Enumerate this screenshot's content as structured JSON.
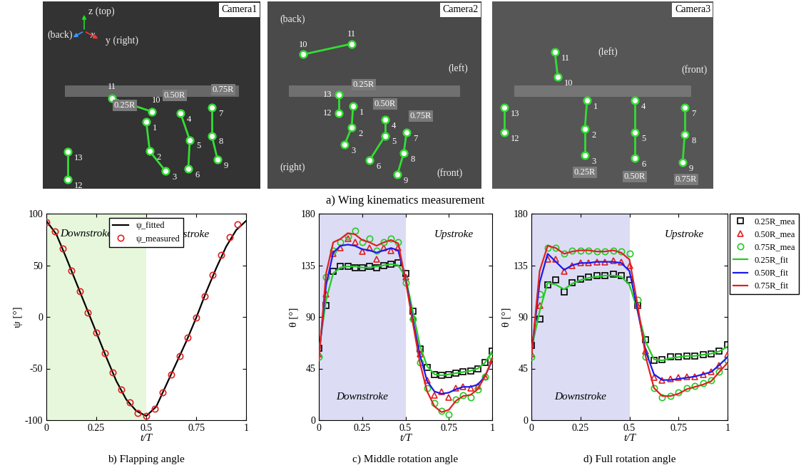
{
  "figure": {
    "caption": "a) Wing kinematics measurement",
    "panels": [
      {
        "camera": "Camera1",
        "directions": [
          "z (top)",
          "(back)",
          "x",
          "y (right)"
        ],
        "points": [
          "1",
          "2",
          "3",
          "4",
          "5",
          "6",
          "7",
          "8",
          "9",
          "10",
          "11",
          "12",
          "13"
        ],
        "sections": [
          "0.25R",
          "0.50R",
          "0.75R"
        ]
      },
      {
        "camera": "Camera2",
        "directions": [
          "(back)",
          "(left)",
          "(right)",
          "(front)"
        ],
        "points": [
          "1",
          "2",
          "3",
          "4",
          "5",
          "6",
          "7",
          "8",
          "9",
          "10",
          "11",
          "12",
          "13"
        ],
        "sections": [
          "0.25R",
          "0.50R",
          "0.75R"
        ]
      },
      {
        "camera": "Camera3",
        "directions": [
          "(left)",
          "(front)"
        ],
        "points": [
          "1",
          "2",
          "3",
          "4",
          "5",
          "6",
          "7",
          "8",
          "9",
          "10",
          "11",
          "12",
          "13"
        ],
        "sections": [
          "0.25R",
          "0.50R",
          "0.75R"
        ]
      }
    ]
  },
  "chart_data": [
    {
      "type": "line",
      "title": "b) Flapping angle",
      "x_label": "t/T",
      "y_label": "ψ [°]",
      "xlim": [
        0,
        1
      ],
      "xticks": [
        0,
        0.25,
        0.5,
        0.75,
        1
      ],
      "ylim": [
        -100,
        100
      ],
      "yticks": [
        -100,
        -50,
        0,
        50,
        100
      ],
      "legend": "upper center",
      "annotations": [
        {
          "text": "Downstroke",
          "x": 0.2,
          "y": 80,
          "span": [
            0,
            0.5
          ],
          "color": "#e6f7dc"
        },
        {
          "text": "Upstroke",
          "x": 0.72,
          "y": 80
        }
      ],
      "series": [
        {
          "name": "ψ_fitted",
          "color": "#000000",
          "marker": "none",
          "line_style": "solid",
          "x": [
            0,
            0.05,
            0.1,
            0.15,
            0.2,
            0.25,
            0.3,
            0.35,
            0.4,
            0.45,
            0.5,
            0.55,
            0.6,
            0.65,
            0.7,
            0.75,
            0.8,
            0.85,
            0.9,
            0.95,
            1
          ],
          "values": [
            93,
            80,
            57,
            33,
            9,
            -15,
            -39,
            -62,
            -80,
            -91,
            -96,
            -87,
            -66,
            -45,
            -24,
            -1,
            24,
            47,
            68,
            84,
            93
          ]
        },
        {
          "name": "ψ_measured",
          "color": "#e02020",
          "marker": "circle",
          "line_style": "none",
          "x": [
            0,
            0.042,
            0.083,
            0.125,
            0.167,
            0.208,
            0.25,
            0.292,
            0.333,
            0.375,
            0.417,
            0.458,
            0.5,
            0.542,
            0.583,
            0.625,
            0.667,
            0.708,
            0.75,
            0.792,
            0.833,
            0.875,
            0.917,
            0.958
          ],
          "values": [
            92,
            83,
            66,
            45,
            25,
            4,
            -15,
            -35,
            -54,
            -70,
            -83,
            -93,
            -96,
            -89,
            -73,
            -56,
            -38,
            -20,
            -1,
            20,
            41,
            60,
            77,
            90
          ]
        }
      ]
    },
    {
      "type": "line",
      "title": "c) Middle rotation angle",
      "x_label": "t/T",
      "y_label": "θ [°]",
      "xlim": [
        0,
        1
      ],
      "xticks": [
        0,
        0.25,
        0.5,
        0.75,
        1
      ],
      "ylim": [
        0,
        180
      ],
      "yticks": [
        0,
        45,
        90,
        135,
        180
      ],
      "annotations": [
        {
          "text": "Downstroke",
          "x": 0.25,
          "y": 20,
          "span": [
            0,
            0.5
          ],
          "color": "#dcdcf5"
        },
        {
          "text": "Upstroke",
          "x": 0.78,
          "y": 162
        }
      ],
      "series": [
        {
          "name": "0.25R_mea",
          "color": "#000000",
          "marker": "square",
          "line_style": "none",
          "x": [
            0,
            0.042,
            0.083,
            0.125,
            0.167,
            0.208,
            0.25,
            0.292,
            0.333,
            0.375,
            0.417,
            0.458,
            0.5,
            0.542,
            0.583,
            0.625,
            0.667,
            0.708,
            0.75,
            0.792,
            0.833,
            0.875,
            0.917,
            0.958,
            1
          ],
          "values": [
            63,
            100,
            130,
            134,
            134,
            133,
            133,
            134,
            133,
            135,
            136,
            137,
            128,
            95,
            62,
            46,
            40,
            39,
            40,
            41,
            42,
            43,
            45,
            50,
            60
          ]
        },
        {
          "name": "0.50R_mea",
          "color": "#e02020",
          "marker": "triangle",
          "line_style": "none",
          "x": [
            0,
            0.042,
            0.083,
            0.125,
            0.167,
            0.208,
            0.25,
            0.292,
            0.333,
            0.375,
            0.417,
            0.458,
            0.5,
            0.542,
            0.583,
            0.625,
            0.667,
            0.708,
            0.75,
            0.792,
            0.833,
            0.875,
            0.917,
            0.958,
            1
          ],
          "values": [
            58,
            110,
            145,
            150,
            158,
            155,
            147,
            150,
            140,
            150,
            148,
            150,
            125,
            90,
            58,
            35,
            22,
            25,
            20,
            28,
            29,
            28,
            30,
            38,
            52
          ]
        },
        {
          "name": "0.75R_mea",
          "color": "#22cc22",
          "marker": "circle",
          "line_style": "none",
          "x": [
            0,
            0.042,
            0.083,
            0.125,
            0.167,
            0.208,
            0.25,
            0.292,
            0.333,
            0.375,
            0.417,
            0.458,
            0.5,
            0.542,
            0.583,
            0.625,
            0.667,
            0.708,
            0.75,
            0.792,
            0.833,
            0.875,
            0.917,
            0.958,
            1
          ],
          "values": [
            55,
            125,
            148,
            155,
            160,
            165,
            155,
            158,
            148,
            155,
            158,
            155,
            120,
            88,
            50,
            28,
            15,
            8,
            5,
            18,
            22,
            20,
            27,
            38,
            55
          ]
        },
        {
          "name": "0.25R_fit",
          "color": "#22cc22",
          "marker": "none",
          "line_style": "solid",
          "x": [
            0,
            0.042,
            0.083,
            0.125,
            0.167,
            0.208,
            0.25,
            0.292,
            0.333,
            0.375,
            0.417,
            0.458,
            0.5,
            0.542,
            0.583,
            0.625,
            0.667,
            0.708,
            0.75,
            0.792,
            0.833,
            0.875,
            0.917,
            0.958,
            1
          ],
          "values": [
            60,
            105,
            128,
            133,
            134,
            134,
            133,
            133,
            134,
            135,
            136,
            135,
            125,
            95,
            65,
            47,
            40,
            39,
            40,
            41,
            42,
            43,
            45,
            50,
            60
          ]
        },
        {
          "name": "0.50R_fit",
          "color": "#1a1aee",
          "marker": "none",
          "line_style": "solid",
          "x": [
            0,
            0.042,
            0.083,
            0.125,
            0.167,
            0.208,
            0.25,
            0.292,
            0.333,
            0.375,
            0.417,
            0.458,
            0.5,
            0.542,
            0.583,
            0.625,
            0.667,
            0.708,
            0.75,
            0.792,
            0.833,
            0.875,
            0.917,
            0.958,
            1
          ],
          "values": [
            55,
            118,
            146,
            152,
            153,
            152,
            149,
            148,
            146,
            148,
            150,
            148,
            124,
            88,
            57,
            34,
            25,
            23,
            24,
            27,
            29,
            29,
            31,
            38,
            52
          ]
        },
        {
          "name": "0.75R_fit",
          "color": "#e02020",
          "marker": "none",
          "line_style": "solid",
          "x": [
            0,
            0.042,
            0.083,
            0.125,
            0.167,
            0.208,
            0.25,
            0.292,
            0.333,
            0.375,
            0.417,
            0.458,
            0.5,
            0.542,
            0.583,
            0.625,
            0.667,
            0.708,
            0.75,
            0.792,
            0.833,
            0.875,
            0.917,
            0.958,
            1
          ],
          "values": [
            52,
            128,
            155,
            158,
            163,
            162,
            157,
            155,
            152,
            155,
            157,
            154,
            122,
            85,
            50,
            25,
            12,
            7,
            9,
            17,
            21,
            22,
            27,
            38,
            53
          ]
        }
      ]
    },
    {
      "type": "line",
      "title": "d) Full rotation angle",
      "x_label": "t/T",
      "y_label": "θ [°]",
      "xlim": [
        0,
        1
      ],
      "xticks": [
        0,
        0.25,
        0.5,
        0.75,
        1
      ],
      "ylim": [
        0,
        180
      ],
      "yticks": [
        0,
        45,
        90,
        135,
        180
      ],
      "legend": "outside right",
      "annotations": [
        {
          "text": "Downstroke",
          "x": 0.25,
          "y": 20,
          "span": [
            0,
            0.5
          ],
          "color": "#dcdcf5"
        },
        {
          "text": "Upstroke",
          "x": 0.78,
          "y": 162
        }
      ],
      "series": [
        {
          "name": "0.25R_mea",
          "color": "#000000",
          "marker": "square",
          "line_style": "none",
          "x": [
            0,
            0.042,
            0.083,
            0.125,
            0.167,
            0.208,
            0.25,
            0.292,
            0.333,
            0.375,
            0.417,
            0.458,
            0.5,
            0.542,
            0.583,
            0.625,
            0.667,
            0.708,
            0.75,
            0.792,
            0.833,
            0.875,
            0.917,
            0.958,
            1
          ],
          "values": [
            65,
            88,
            118,
            122,
            112,
            120,
            123,
            125,
            126,
            126,
            127,
            126,
            122,
            100,
            70,
            52,
            53,
            55,
            55,
            56,
            56,
            57,
            58,
            60,
            66
          ]
        },
        {
          "name": "0.50R_mea",
          "color": "#e02020",
          "marker": "triangle",
          "line_style": "none",
          "x": [
            0,
            0.042,
            0.083,
            0.125,
            0.167,
            0.208,
            0.25,
            0.292,
            0.333,
            0.375,
            0.417,
            0.458,
            0.5,
            0.542,
            0.583,
            0.625,
            0.667,
            0.708,
            0.75,
            0.792,
            0.833,
            0.875,
            0.917,
            0.958,
            1
          ],
          "values": [
            58,
            100,
            140,
            140,
            130,
            135,
            137,
            137,
            138,
            138,
            139,
            138,
            135,
            100,
            60,
            37,
            35,
            36,
            37,
            38,
            38,
            40,
            42,
            48,
            57
          ]
        },
        {
          "name": "0.75R_mea",
          "color": "#22cc22",
          "marker": "circle",
          "line_style": "none",
          "x": [
            0,
            0.042,
            0.083,
            0.125,
            0.167,
            0.208,
            0.25,
            0.292,
            0.333,
            0.375,
            0.417,
            0.458,
            0.5,
            0.542,
            0.583,
            0.625,
            0.667,
            0.708,
            0.75,
            0.792,
            0.833,
            0.875,
            0.917,
            0.958,
            1
          ],
          "values": [
            55,
            110,
            150,
            150,
            145,
            148,
            148,
            148,
            147,
            147,
            148,
            147,
            145,
            105,
            55,
            28,
            20,
            21,
            24,
            28,
            30,
            32,
            35,
            42,
            52
          ]
        },
        {
          "name": "0.25R_fit",
          "color": "#22cc22",
          "marker": "none",
          "line_style": "solid",
          "x": [
            0,
            0.042,
            0.083,
            0.125,
            0.167,
            0.208,
            0.25,
            0.292,
            0.333,
            0.375,
            0.417,
            0.458,
            0.5,
            0.542,
            0.583,
            0.625,
            0.667,
            0.708,
            0.75,
            0.792,
            0.833,
            0.875,
            0.917,
            0.958,
            1
          ],
          "values": [
            62,
            95,
            120,
            118,
            114,
            119,
            122,
            124,
            125,
            126,
            126,
            125,
            118,
            95,
            68,
            53,
            52,
            54,
            55,
            56,
            56,
            57,
            58,
            60,
            64
          ]
        },
        {
          "name": "0.50R_fit",
          "color": "#1a1aee",
          "marker": "none",
          "line_style": "solid",
          "x": [
            0,
            0.042,
            0.083,
            0.125,
            0.167,
            0.208,
            0.25,
            0.292,
            0.333,
            0.375,
            0.417,
            0.458,
            0.5,
            0.542,
            0.583,
            0.625,
            0.667,
            0.708,
            0.75,
            0.792,
            0.833,
            0.875,
            0.917,
            0.958,
            1
          ],
          "values": [
            57,
            120,
            145,
            138,
            131,
            135,
            137,
            137,
            138,
            138,
            138,
            137,
            130,
            95,
            60,
            40,
            35,
            35,
            36,
            37,
            38,
            40,
            42,
            48,
            55
          ]
        },
        {
          "name": "0.75R_fit",
          "color": "#e02020",
          "marker": "none",
          "line_style": "solid",
          "x": [
            0,
            0.042,
            0.083,
            0.125,
            0.167,
            0.208,
            0.25,
            0.292,
            0.333,
            0.375,
            0.417,
            0.458,
            0.5,
            0.542,
            0.583,
            0.625,
            0.667,
            0.708,
            0.75,
            0.792,
            0.833,
            0.875,
            0.917,
            0.958,
            1
          ],
          "values": [
            55,
            130,
            152,
            150,
            145,
            147,
            148,
            148,
            147,
            147,
            148,
            146,
            140,
            100,
            55,
            28,
            21,
            21,
            23,
            27,
            29,
            31,
            34,
            42,
            50
          ]
        }
      ]
    }
  ]
}
